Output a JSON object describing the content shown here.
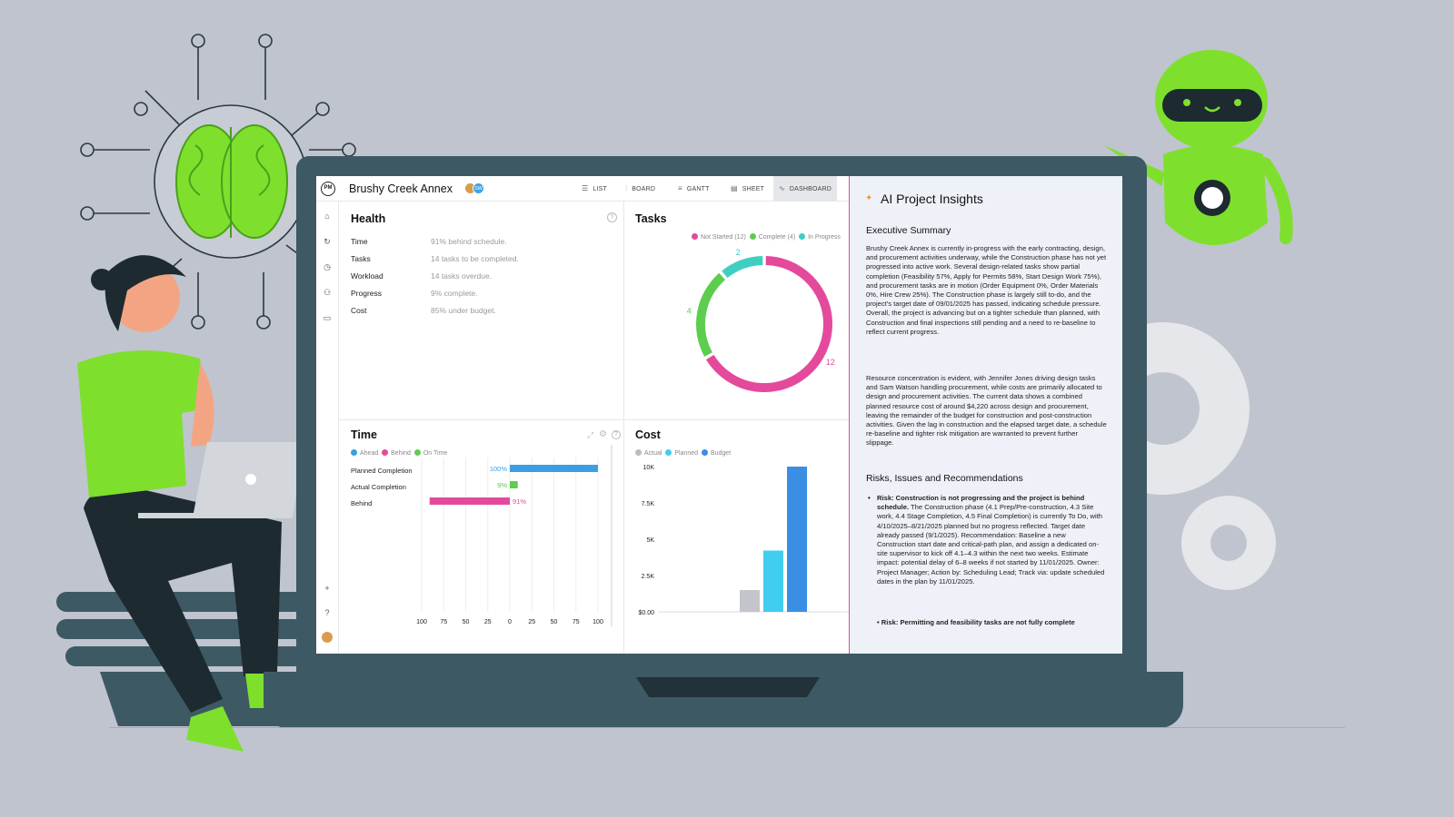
{
  "app": {
    "logo": "PM",
    "project_title": "Brushy Creek Annex",
    "avatar_initials": "SW"
  },
  "nav": {
    "tabs": [
      {
        "label": "LIST",
        "icon": "list-icon"
      },
      {
        "label": "BOARD",
        "icon": "board-icon"
      },
      {
        "label": "GANTT",
        "icon": "gantt-icon"
      },
      {
        "label": "SHEET",
        "icon": "sheet-icon"
      },
      {
        "label": "DASHBOARD",
        "icon": "dashboard-icon",
        "active": true
      }
    ]
  },
  "sidebar": {
    "icons": [
      "home-icon",
      "refresh-icon",
      "clock-icon",
      "people-icon",
      "briefcase-icon",
      "plus-icon",
      "help-icon",
      "avatar-icon"
    ]
  },
  "health": {
    "title": "Health",
    "rows": [
      {
        "label": "Time",
        "value": "91% behind schedule."
      },
      {
        "label": "Tasks",
        "value": "14 tasks to be completed."
      },
      {
        "label": "Workload",
        "value": "14 tasks overdue."
      },
      {
        "label": "Progress",
        "value": "9% complete."
      },
      {
        "label": "Cost",
        "value": "85% under budget."
      }
    ]
  },
  "tasks": {
    "title": "Tasks",
    "legend": [
      "Not Started (12)",
      "Complete (4)",
      "In Progress"
    ],
    "chart_data": {
      "type": "pie",
      "categories": [
        "Not Started",
        "Complete",
        "In Progress"
      ],
      "values": [
        12,
        4,
        2
      ],
      "data_labels": [
        "12",
        "4",
        "2"
      ],
      "colors": [
        "#e44a9c",
        "#5dcd4f",
        "#3fcfc0"
      ]
    }
  },
  "time": {
    "title": "Time",
    "legend": [
      "Ahead",
      "Behind",
      "On Time"
    ],
    "legend_colors": [
      "#3a9ee4",
      "#e44a9c",
      "#5dcd4f"
    ],
    "chart_data": {
      "type": "bar",
      "categories": [
        "Planned Completion",
        "Actual Completion",
        "Behind"
      ],
      "values": [
        100,
        9,
        -91
      ],
      "data_labels": [
        "100%",
        "9%",
        "91%"
      ],
      "colors": [
        "#3a9ee4",
        "#5dcd4f",
        "#e44a9c"
      ],
      "x_ticks": [
        "100",
        "75",
        "50",
        "25",
        "0",
        "25",
        "50",
        "75",
        "100"
      ],
      "xlim": [
        -100,
        100
      ]
    }
  },
  "cost": {
    "title": "Cost",
    "legend": [
      "Actual",
      "Planned",
      "Budget"
    ],
    "legend_colors": [
      "#b9bcc3",
      "#41cdf0",
      "#3a8ee4"
    ],
    "chart_data": {
      "type": "bar",
      "categories": [
        "Actual",
        "Planned",
        "Budget"
      ],
      "values": [
        1500,
        4220,
        10000
      ],
      "colors": [
        "#c3c5cb",
        "#41cdf0",
        "#3a8ee4"
      ],
      "y_ticks": [
        "10K",
        "7.5K",
        "5K",
        "2.5K",
        "$0.00"
      ],
      "ylim": [
        0,
        10000
      ]
    }
  },
  "ai": {
    "title": "AI Project Insights",
    "exec_heading": "Executive Summary",
    "para1": "Brushy Creek Annex is currently in-progress with the early contracting, design, and procurement activities underway, while the Construction phase has not yet progressed into active work. Several design-related tasks show partial completion (Feasibility 57%, Apply for Permits 58%, Start Design Work 75%), and procurement tasks are in motion (Order Equipment 0%, Order Materials 0%, Hire Crew 25%). The Construction phase is largely still to-do, and the project's target date of 09/01/2025 has passed, indicating schedule pressure. Overall, the project is advancing but on a tighter schedule than planned, with Construction and final inspections still pending and a need to re-baseline to reflect current progress.",
    "para2": "Resource concentration is evident, with Jennifer Jones driving design tasks and Sam Watson handling procurement, while costs are primarily allocated to design and procurement activities. The current data shows a combined planned resource cost of around $4,220 across design and procurement, leaving the remainder of the budget for construction and post-construction activities. Given the lag in construction and the elapsed target date, a schedule re-baseline and tighter risk mitigation are warranted to prevent further slippage.",
    "risks_heading": "Risks, Issues and Recommendations",
    "risk1_bold": "Risk: Construction is not progressing and the project is behind schedule.",
    "risk1_text": " The Construction phase (4.1 Prep/Pre-construction, 4.3 Site work, 4.4 Stage Completion, 4.5 Final Completion) is currently To Do, with 4/10/2025–8/21/2025 planned but no progress reflected. Target date already passed (9/1/2025). Recommendation: Baseline a new Construction start date and critical-path plan, and assign a dedicated on-site supervisor to kick off 4.1–4.3 within the next two weeks. Estimate impact: potential delay of 6–8 weeks if not started by 11/01/2025. Owner: Project Manager; Action by: Scheduling Lead; Track via: update scheduled dates in the plan by 11/01/2025.",
    "risk2_bold": "Risk: Permitting and feasibility tasks are not fully complete"
  }
}
